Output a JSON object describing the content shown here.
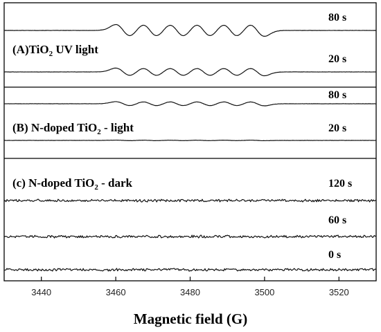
{
  "chart_data": {
    "type": "line",
    "xlabel": "Magnetic field (G)",
    "xlim": [
      3430,
      3530
    ],
    "xticks": [
      3440,
      3460,
      3480,
      3500,
      3520
    ],
    "panels": [
      {
        "id": "A",
        "label": {
          "prefix": "(A)TiO",
          "sub": "2",
          "suffix": "  UV light"
        },
        "series": [
          {
            "name": "80 s",
            "signal": "hyperfine-sextet",
            "center": 3480,
            "spacing": 7.2,
            "amplitude": 1.0
          },
          {
            "name": "20 s",
            "signal": "hyperfine-sextet",
            "center": 3480,
            "spacing": 7.2,
            "amplitude": 0.65
          }
        ]
      },
      {
        "id": "B",
        "label": {
          "prefix": "(B) N-doped TiO",
          "sub": "2",
          "suffix": " - light"
        },
        "series": [
          {
            "name": "80 s",
            "signal": "hyperfine-sextet",
            "center": 3480,
            "spacing": 7.2,
            "amplitude": 0.35
          },
          {
            "name": "20 s",
            "signal": "hyperfine-sextet",
            "center": 3480,
            "spacing": 7.2,
            "amplitude": 0.04
          }
        ]
      },
      {
        "id": "C",
        "label": {
          "prefix": "(c) N-doped TiO",
          "sub": "2",
          "suffix": " - dark"
        },
        "series": [
          {
            "name": "120 s",
            "signal": "noise",
            "amplitude": 0.12
          },
          {
            "name": "60 s",
            "signal": "noise",
            "amplitude": 0.12
          },
          {
            "name": "0 s",
            "signal": "noise",
            "amplitude": 0.12
          }
        ]
      }
    ]
  }
}
